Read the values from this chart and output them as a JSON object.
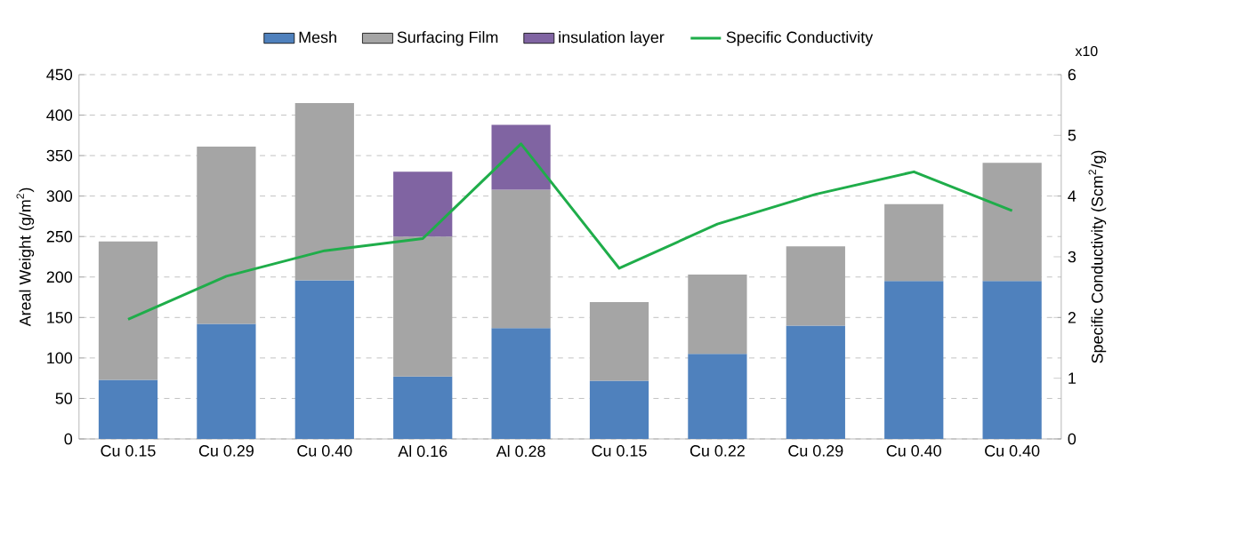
{
  "chart_data": {
    "type": "bar",
    "stacked": true,
    "categories": [
      "Cu 0.15",
      "Cu 0.29",
      "Cu 0.40",
      "Al 0.16",
      "Al 0.28",
      "Cu 0.15",
      "Cu 0.22",
      "Cu 0.29",
      "Cu 0.40",
      "Cu 0.40"
    ],
    "series": [
      {
        "name": "Mesh",
        "color": "#4f81bd",
        "values": [
          73,
          142,
          196,
          77,
          137,
          72,
          105,
          140,
          195,
          195
        ]
      },
      {
        "name": "Surfacing Film",
        "color": "#a5a5a5",
        "values": [
          171,
          219,
          219,
          173,
          171,
          97,
          98,
          98,
          95,
          146
        ]
      },
      {
        "name": "insulation layer",
        "color": "#8064a2",
        "values": [
          null,
          null,
          null,
          80,
          80,
          null,
          null,
          null,
          null,
          null
        ]
      },
      {
        "name": "Specific Conductivity",
        "type": "line",
        "axis": "y2",
        "color": "#1fad4a",
        "values": [
          1.97,
          2.68,
          3.1,
          3.3,
          4.86,
          2.81,
          3.54,
          4.03,
          4.4,
          3.76
        ]
      }
    ],
    "ylabel": "Areal Weight (g/m$^{2}$)",
    "y2label": "Specific Conductivity (Scm$^{2}$/g)",
    "ylim": [
      0,
      450
    ],
    "yticks": [
      0,
      50,
      100,
      150,
      200,
      250,
      300,
      350,
      400,
      450
    ],
    "y2lim": [
      0,
      6
    ],
    "y2ticks": [
      0,
      1,
      2,
      3,
      4,
      5,
      6
    ],
    "grid": "y",
    "legend": "top",
    "annotations": [
      "x10"
    ]
  }
}
